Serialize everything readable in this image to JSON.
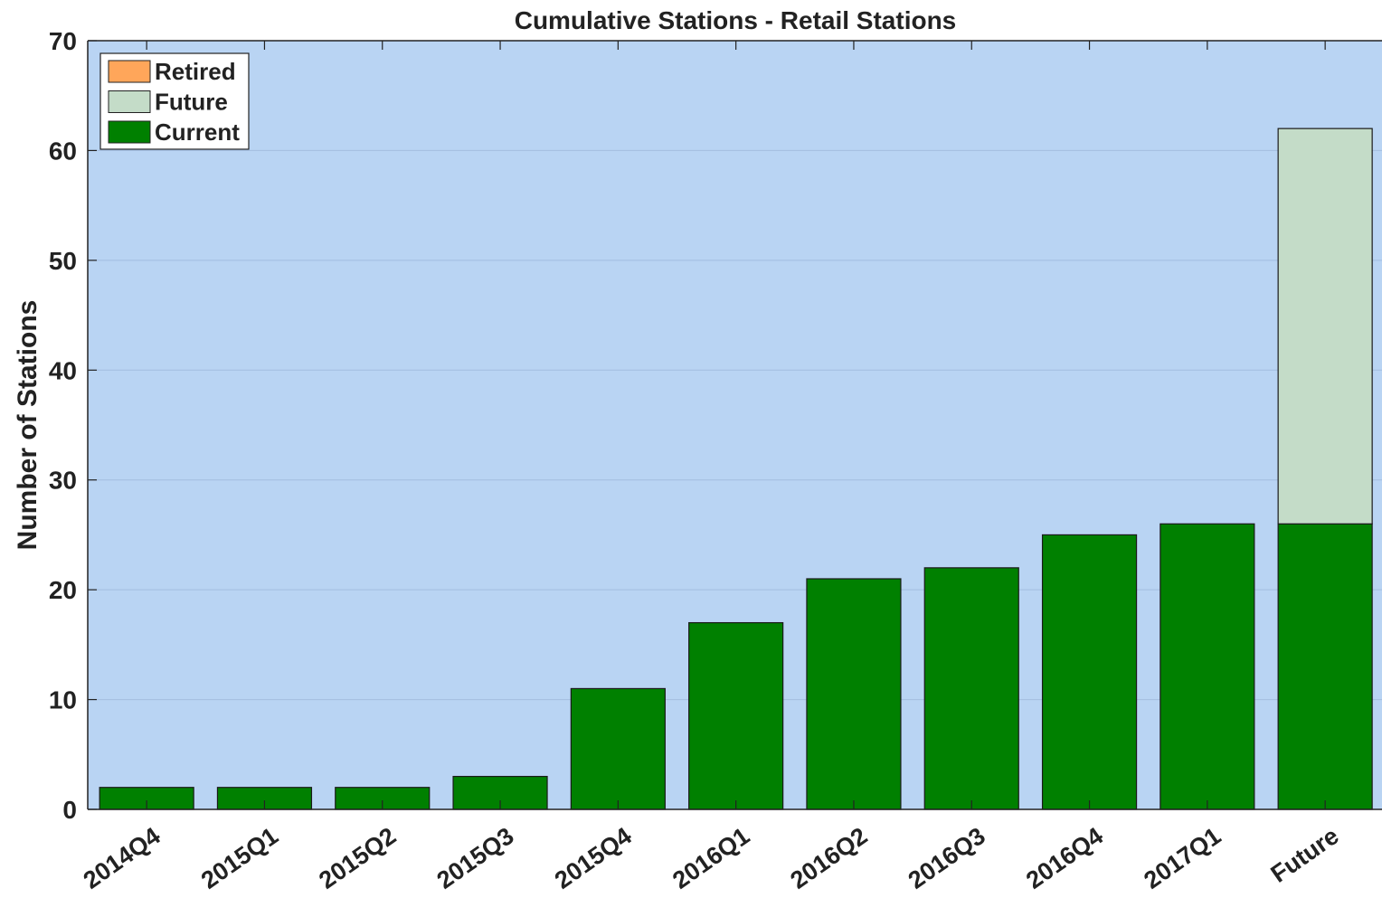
{
  "chart_data": {
    "type": "bar",
    "stacked": true,
    "title": "Cumulative Stations - Retail Stations",
    "xlabel": "",
    "ylabel": "Number of Stations",
    "ylim": [
      0,
      70
    ],
    "yticks": [
      0,
      10,
      20,
      30,
      40,
      50,
      60,
      70
    ],
    "grid": "horizontal",
    "legend_position": "top-left",
    "categories": [
      "2014Q4",
      "2015Q1",
      "2015Q2",
      "2015Q3",
      "2015Q4",
      "2016Q1",
      "2016Q2",
      "2016Q3",
      "2016Q4",
      "2017Q1",
      "Future"
    ],
    "series": [
      {
        "name": "Current",
        "color": "#008000",
        "values": [
          2,
          2,
          2,
          3,
          11,
          17,
          21,
          22,
          25,
          26,
          26
        ]
      },
      {
        "name": "Future",
        "color": "#c4dcc8",
        "values": [
          0,
          0,
          0,
          0,
          0,
          0,
          0,
          0,
          0,
          0,
          36
        ]
      },
      {
        "name": "Retired",
        "color": "#ffa65a",
        "values": [
          0,
          0,
          0,
          0,
          0,
          0,
          0,
          0,
          0,
          0,
          0
        ]
      }
    ],
    "legend_order": [
      "Retired",
      "Future",
      "Current"
    ],
    "plot_background": "#b9d4f3",
    "gridline_color": "#a3bde0"
  }
}
